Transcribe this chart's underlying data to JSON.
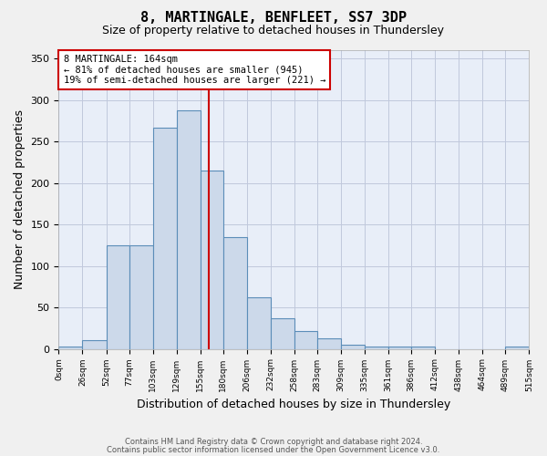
{
  "title": "8, MARTINGALE, BENFLEET, SS7 3DP",
  "subtitle": "Size of property relative to detached houses in Thundersley",
  "xlabel": "Distribution of detached houses by size in Thundersley",
  "ylabel": "Number of detached properties",
  "bar_color": "#ccd9ea",
  "bar_edge_color": "#5b8db8",
  "background_color": "#e8eef8",
  "bin_edges": [
    0,
    26,
    52,
    77,
    103,
    129,
    155,
    180,
    206,
    232,
    258,
    283,
    309,
    335,
    361,
    386,
    412,
    438,
    464,
    489,
    515
  ],
  "bar_heights": [
    3,
    11,
    125,
    125,
    267,
    288,
    215,
    135,
    62,
    37,
    22,
    13,
    5,
    3,
    3,
    3,
    0,
    0,
    0,
    3
  ],
  "vline_x": 164,
  "vline_color": "#cc0000",
  "ylim": [
    0,
    360
  ],
  "yticks": [
    0,
    50,
    100,
    150,
    200,
    250,
    300,
    350
  ],
  "annotation_title": "8 MARTINGALE: 164sqm",
  "annotation_line1": "← 81% of detached houses are smaller (945)",
  "annotation_line2": "19% of semi-detached houses are larger (221) →",
  "annotation_box_color": "#ffffff",
  "annotation_box_edge": "#cc0000",
  "footer1": "Contains HM Land Registry data © Crown copyright and database right 2024.",
  "footer2": "Contains public sector information licensed under the Open Government Licence v3.0.",
  "xtick_labels": [
    "0sqm",
    "26sqm",
    "52sqm",
    "77sqm",
    "103sqm",
    "129sqm",
    "155sqm",
    "180sqm",
    "206sqm",
    "232sqm",
    "258sqm",
    "283sqm",
    "309sqm",
    "335sqm",
    "361sqm",
    "386sqm",
    "412sqm",
    "438sqm",
    "464sqm",
    "489sqm",
    "515sqm"
  ]
}
